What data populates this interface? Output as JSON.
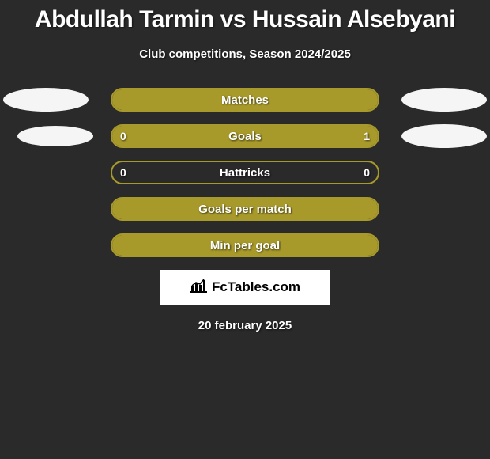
{
  "title": "Abdullah Tarmin vs Hussain Alsebyani",
  "subtitle": "Club competitions, Season 2024/2025",
  "date": "20 february 2025",
  "logo_text": "FcTables.com",
  "colors": {
    "background": "#2a2a2a",
    "bar_border": "#a89a2a",
    "bar_fill": "#a89a2a",
    "ellipse": "#f5f5f5",
    "text": "#ffffff"
  },
  "rows": [
    {
      "label": "Matches",
      "left_value": "",
      "right_value": "",
      "left_fill_pct": 50,
      "right_fill_pct": 50,
      "show_left_ellipse": true,
      "show_right_ellipse": true,
      "show_values": false
    },
    {
      "label": "Goals",
      "left_value": "0",
      "right_value": "1",
      "left_fill_pct": 0,
      "right_fill_pct": 100,
      "show_left_ellipse": true,
      "show_right_ellipse": true,
      "show_values": true
    },
    {
      "label": "Hattricks",
      "left_value": "0",
      "right_value": "0",
      "left_fill_pct": 0,
      "right_fill_pct": 0,
      "show_left_ellipse": false,
      "show_right_ellipse": false,
      "show_values": true
    },
    {
      "label": "Goals per match",
      "left_value": "",
      "right_value": "",
      "left_fill_pct": 50,
      "right_fill_pct": 50,
      "show_left_ellipse": false,
      "show_right_ellipse": false,
      "show_values": false
    },
    {
      "label": "Min per goal",
      "left_value": "",
      "right_value": "",
      "left_fill_pct": 50,
      "right_fill_pct": 50,
      "show_left_ellipse": false,
      "show_right_ellipse": false,
      "show_values": false
    }
  ]
}
